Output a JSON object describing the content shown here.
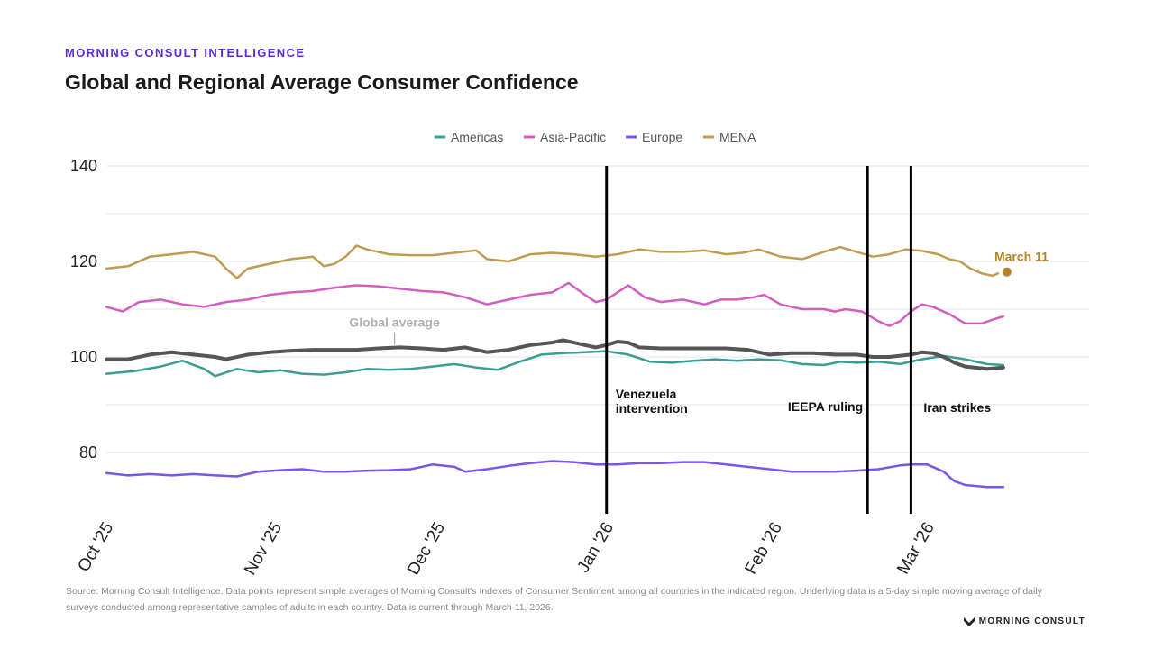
{
  "header": {
    "kicker": "MORNING CONSULT INTELLIGENCE",
    "title": "Global and Regional Average Consumer Confidence"
  },
  "footer": {
    "source": "Source: Morning Consult Intelligence. Data points represent simple averages of Morning Consult's Indexes of Consumer Sentiment among all countries in the indicated region. Underlying data is a 5-day simple moving average of daily surveys conducted among representative samples of adults in each country. Data is current through March 11, 2026.",
    "brand": "MORNING CONSULT"
  },
  "chart_data": {
    "type": "line",
    "title": "Global and Regional Average Consumer Confidence",
    "xlabel": "",
    "ylabel": "",
    "ylim": [
      71,
      140
    ],
    "yticks": [
      80,
      100,
      120,
      140
    ],
    "xlim": [
      0,
      168
    ],
    "xticks": [
      {
        "label": "Oct '25",
        "value": 0
      },
      {
        "label": "Nov '25",
        "value": 31
      },
      {
        "label": "Dec '25",
        "value": 61
      },
      {
        "label": "Jan '26",
        "value": 92
      },
      {
        "label": "Feb '26",
        "value": 123
      },
      {
        "label": "Mar '26",
        "value": 151
      }
    ],
    "grid": true,
    "legend_position": "top-center",
    "series": [
      {
        "name": "Americas",
        "color": "#3a9e96",
        "in_legend": true,
        "points": [
          [
            0,
            96.5
          ],
          [
            5,
            97
          ],
          [
            10,
            98
          ],
          [
            14,
            99.2
          ],
          [
            18,
            97.5
          ],
          [
            20,
            96
          ],
          [
            24,
            97.5
          ],
          [
            28,
            96.8
          ],
          [
            32,
            97.2
          ],
          [
            36,
            96.5
          ],
          [
            40,
            96.3
          ],
          [
            44,
            96.8
          ],
          [
            48,
            97.5
          ],
          [
            52,
            97.3
          ],
          [
            56,
            97.5
          ],
          [
            60,
            98
          ],
          [
            64,
            98.5
          ],
          [
            68,
            97.8
          ],
          [
            72,
            97.3
          ],
          [
            76,
            99
          ],
          [
            80,
            100.5
          ],
          [
            84,
            100.8
          ],
          [
            88,
            101
          ],
          [
            92,
            101.2
          ],
          [
            96,
            100.5
          ],
          [
            100,
            99
          ],
          [
            104,
            98.8
          ],
          [
            108,
            99.2
          ],
          [
            112,
            99.5
          ],
          [
            116,
            99.2
          ],
          [
            120,
            99.5
          ],
          [
            124,
            99.3
          ],
          [
            128,
            98.5
          ],
          [
            132,
            98.3
          ],
          [
            135,
            99
          ],
          [
            138,
            98.8
          ],
          [
            142,
            99
          ],
          [
            146,
            98.5
          ],
          [
            150,
            99.5
          ],
          [
            154,
            100.2
          ],
          [
            158,
            99.5
          ],
          [
            162,
            98.5
          ],
          [
            165,
            98.3
          ]
        ]
      },
      {
        "name": "Asia-Pacific",
        "color": "#d15ec0",
        "in_legend": true,
        "points": [
          [
            0,
            110.5
          ],
          [
            3,
            109.5
          ],
          [
            6,
            111.5
          ],
          [
            10,
            112
          ],
          [
            14,
            111
          ],
          [
            18,
            110.5
          ],
          [
            22,
            111.5
          ],
          [
            26,
            112
          ],
          [
            30,
            113
          ],
          [
            34,
            113.5
          ],
          [
            38,
            113.8
          ],
          [
            42,
            114.5
          ],
          [
            46,
            115
          ],
          [
            50,
            114.8
          ],
          [
            54,
            114.3
          ],
          [
            58,
            113.8
          ],
          [
            62,
            113.5
          ],
          [
            66,
            112.5
          ],
          [
            70,
            111
          ],
          [
            74,
            112
          ],
          [
            78,
            113
          ],
          [
            82,
            113.5
          ],
          [
            85,
            115.5
          ],
          [
            88,
            113
          ],
          [
            90,
            111.5
          ],
          [
            92,
            112
          ],
          [
            94,
            113.5
          ],
          [
            96,
            115
          ],
          [
            99,
            112.5
          ],
          [
            102,
            111.5
          ],
          [
            106,
            112
          ],
          [
            110,
            111
          ],
          [
            113,
            112
          ],
          [
            116,
            112
          ],
          [
            119,
            112.5
          ],
          [
            121,
            113
          ],
          [
            124,
            111
          ],
          [
            128,
            110
          ],
          [
            132,
            110
          ],
          [
            134,
            109.5
          ],
          [
            136,
            110
          ],
          [
            139,
            109.5
          ],
          [
            142,
            107.5
          ],
          [
            144,
            106.5
          ],
          [
            146,
            107.5
          ],
          [
            148,
            109.5
          ],
          [
            150,
            111
          ],
          [
            152,
            110.5
          ],
          [
            155,
            109
          ],
          [
            158,
            107
          ],
          [
            161,
            107
          ],
          [
            163,
            107.8
          ],
          [
            165,
            108.5
          ]
        ]
      },
      {
        "name": "Europe",
        "color": "#7c55e6",
        "in_legend": true,
        "points": [
          [
            0,
            75.7
          ],
          [
            4,
            75.2
          ],
          [
            8,
            75.5
          ],
          [
            12,
            75.2
          ],
          [
            16,
            75.5
          ],
          [
            20,
            75.2
          ],
          [
            24,
            75
          ],
          [
            28,
            76
          ],
          [
            32,
            76.3
          ],
          [
            36,
            76.5
          ],
          [
            40,
            76
          ],
          [
            44,
            76
          ],
          [
            48,
            76.2
          ],
          [
            52,
            76.3
          ],
          [
            56,
            76.5
          ],
          [
            60,
            77.5
          ],
          [
            64,
            77
          ],
          [
            66,
            76
          ],
          [
            70,
            76.5
          ],
          [
            74,
            77.2
          ],
          [
            78,
            77.8
          ],
          [
            82,
            78.2
          ],
          [
            86,
            78
          ],
          [
            90,
            77.5
          ],
          [
            94,
            77.5
          ],
          [
            98,
            77.8
          ],
          [
            102,
            77.8
          ],
          [
            106,
            78
          ],
          [
            110,
            78
          ],
          [
            114,
            77.5
          ],
          [
            118,
            77
          ],
          [
            122,
            76.5
          ],
          [
            126,
            76
          ],
          [
            130,
            76
          ],
          [
            134,
            76
          ],
          [
            138,
            76.2
          ],
          [
            142,
            76.5
          ],
          [
            146,
            77.3
          ],
          [
            148,
            77.5
          ],
          [
            151,
            77.5
          ],
          [
            154,
            76
          ],
          [
            156,
            74
          ],
          [
            158,
            73.2
          ],
          [
            162,
            72.8
          ],
          [
            165,
            72.8
          ]
        ]
      },
      {
        "name": "MENA",
        "color": "#bf9c52",
        "in_legend": true,
        "points": [
          [
            0,
            118.5
          ],
          [
            4,
            119
          ],
          [
            8,
            121
          ],
          [
            12,
            121.5
          ],
          [
            16,
            122
          ],
          [
            20,
            121
          ],
          [
            22,
            118.5
          ],
          [
            24,
            116.5
          ],
          [
            26,
            118.5
          ],
          [
            30,
            119.5
          ],
          [
            34,
            120.5
          ],
          [
            38,
            121
          ],
          [
            40,
            119
          ],
          [
            42,
            119.5
          ],
          [
            44,
            121
          ],
          [
            46,
            123.3
          ],
          [
            48,
            122.5
          ],
          [
            52,
            121.5
          ],
          [
            56,
            121.3
          ],
          [
            60,
            121.3
          ],
          [
            64,
            121.8
          ],
          [
            68,
            122.3
          ],
          [
            70,
            120.5
          ],
          [
            74,
            120
          ],
          [
            78,
            121.5
          ],
          [
            82,
            121.8
          ],
          [
            86,
            121.5
          ],
          [
            90,
            121
          ],
          [
            94,
            121.5
          ],
          [
            98,
            122.5
          ],
          [
            102,
            122
          ],
          [
            106,
            122
          ],
          [
            110,
            122.3
          ],
          [
            114,
            121.5
          ],
          [
            117,
            121.8
          ],
          [
            120,
            122.5
          ],
          [
            124,
            121
          ],
          [
            128,
            120.5
          ],
          [
            132,
            122
          ],
          [
            135,
            123
          ],
          [
            138,
            122
          ],
          [
            141,
            121
          ],
          [
            144,
            121.5
          ],
          [
            147,
            122.5
          ],
          [
            150,
            122.2
          ],
          [
            153,
            121.5
          ],
          [
            155,
            120.5
          ],
          [
            157,
            120
          ],
          [
            159,
            118.5
          ],
          [
            161,
            117.5
          ],
          [
            163,
            117
          ],
          [
            164,
            117.5
          ]
        ]
      },
      {
        "name": "Global average",
        "color": "#555555",
        "in_legend": false,
        "points": [
          [
            0,
            99.5
          ],
          [
            4,
            99.5
          ],
          [
            8,
            100.5
          ],
          [
            12,
            101
          ],
          [
            16,
            100.5
          ],
          [
            20,
            100
          ],
          [
            22,
            99.5
          ],
          [
            26,
            100.5
          ],
          [
            30,
            101
          ],
          [
            34,
            101.3
          ],
          [
            38,
            101.5
          ],
          [
            42,
            101.5
          ],
          [
            46,
            101.5
          ],
          [
            50,
            101.8
          ],
          [
            54,
            102
          ],
          [
            58,
            101.8
          ],
          [
            62,
            101.5
          ],
          [
            66,
            102
          ],
          [
            70,
            101
          ],
          [
            74,
            101.5
          ],
          [
            78,
            102.5
          ],
          [
            82,
            103
          ],
          [
            84,
            103.5
          ],
          [
            88,
            102.5
          ],
          [
            90,
            102
          ],
          [
            92,
            102.5
          ],
          [
            94,
            103.2
          ],
          [
            96,
            103
          ],
          [
            98,
            102
          ],
          [
            102,
            101.8
          ],
          [
            106,
            101.8
          ],
          [
            110,
            101.8
          ],
          [
            114,
            101.8
          ],
          [
            118,
            101.5
          ],
          [
            122,
            100.5
          ],
          [
            126,
            100.8
          ],
          [
            130,
            100.8
          ],
          [
            134,
            100.5
          ],
          [
            138,
            100.5
          ],
          [
            141,
            100
          ],
          [
            144,
            100
          ],
          [
            148,
            100.5
          ],
          [
            150,
            101
          ],
          [
            152,
            100.8
          ],
          [
            154,
            100
          ],
          [
            156,
            98.8
          ],
          [
            158,
            98
          ],
          [
            162,
            97.5
          ],
          [
            165,
            97.8
          ]
        ]
      }
    ],
    "global_label": "Global average",
    "annotations": [
      {
        "label_lines": [
          "Venezuela",
          "intervention"
        ],
        "x": 92
      },
      {
        "label_lines": [
          "IEEPA ruling"
        ],
        "x": 140
      },
      {
        "label_lines": [
          "Iran strikes"
        ],
        "x": 148
      }
    ],
    "end_label": {
      "text": "March 11",
      "x": 165,
      "y": 117.8,
      "color": "#b5842a"
    }
  }
}
